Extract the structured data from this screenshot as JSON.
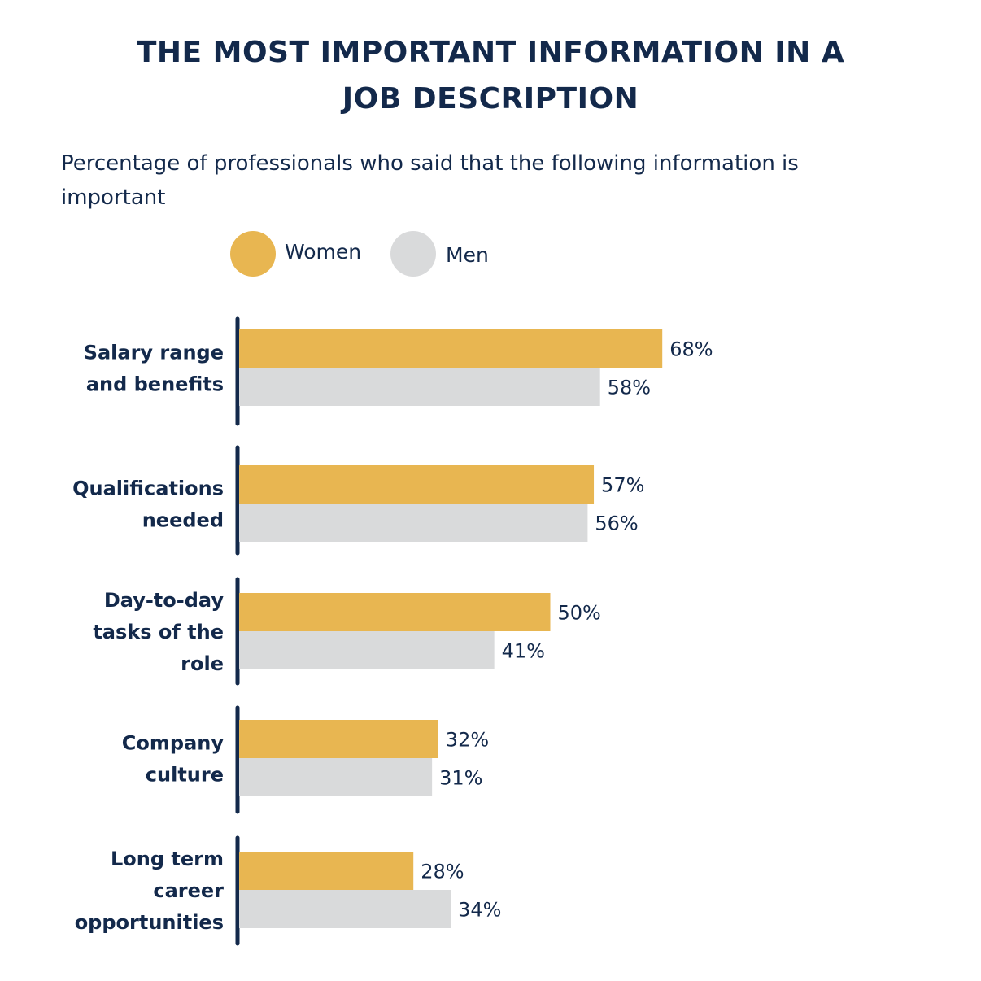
{
  "header": {
    "title_line1": "THE MOST IMPORTANT INFORMATION IN A",
    "title_line2": "JOB DESCRIPTION",
    "subtitle": "Percentage of professionals who said that the following information is important"
  },
  "colors": {
    "women": "#e8b651",
    "men": "#d9dadb",
    "text": "#13294b"
  },
  "legend": [
    {
      "label": "Women",
      "color": "#e8b651"
    },
    {
      "label": "Men",
      "color": "#d9dadb"
    }
  ],
  "chart_data": {
    "type": "bar",
    "orientation": "horizontal",
    "title": "THE MOST IMPORTANT INFORMATION IN A JOB DESCRIPTION",
    "subtitle": "Percentage of professionals who said that the following information is important",
    "categories": [
      [
        "Salary range",
        "and benefits"
      ],
      [
        "Qualifications",
        "needed"
      ],
      [
        "Day-to-day",
        "tasks of the",
        "role"
      ],
      [
        "Company",
        "culture"
      ],
      [
        "Long term",
        "career",
        "opportunities"
      ]
    ],
    "series": [
      {
        "name": "Women",
        "values": [
          68,
          57,
          50,
          32,
          28
        ],
        "labels": [
          "68%",
          "57%",
          "50%",
          "32%",
          "28%"
        ]
      },
      {
        "name": "Men",
        "values": [
          58,
          56,
          41,
          31,
          34
        ],
        "labels": [
          "58%",
          "56%",
          "41%",
          "31%",
          "34%"
        ]
      }
    ],
    "xlim": [
      0,
      100
    ],
    "unit": "%",
    "grid": false,
    "legend_position": "top"
  }
}
